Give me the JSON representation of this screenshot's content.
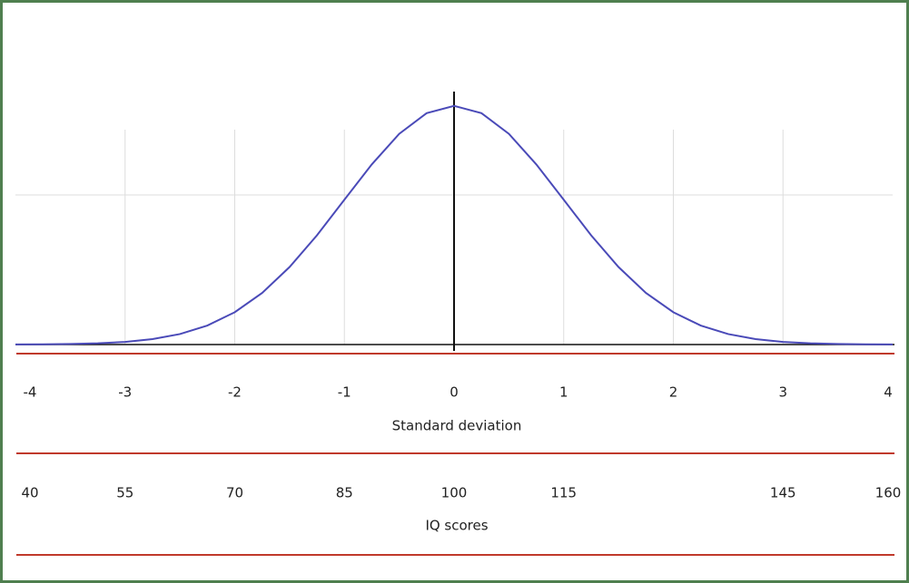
{
  "chart_data": {
    "type": "line",
    "x": [
      -4,
      -3.75,
      -3.5,
      -3.25,
      -3,
      -2.75,
      -2.5,
      -2.25,
      -2,
      -1.75,
      -1.5,
      -1.25,
      -1,
      -0.75,
      -0.5,
      -0.25,
      0,
      0.25,
      0.5,
      0.75,
      1,
      1.25,
      1.5,
      1.75,
      2,
      2.25,
      2.5,
      2.75,
      3,
      3.25,
      3.5,
      3.75,
      4
    ],
    "series": [
      {
        "color": "#4a4ab8",
        "values": [
          0.0001,
          0.0004,
          0.0009,
          0.002,
          0.0044,
          0.0091,
          0.0175,
          0.0317,
          0.054,
          0.0863,
          0.1295,
          0.1826,
          0.242,
          0.3011,
          0.3521,
          0.3867,
          0.3989,
          0.3867,
          0.3521,
          0.3011,
          0.242,
          0.1826,
          0.1295,
          0.0863,
          0.054,
          0.0317,
          0.0175,
          0.0091,
          0.0044,
          0.002,
          0.0009,
          0.0004,
          0.0001
        ]
      }
    ],
    "xlim": [
      -4,
      4
    ],
    "ylim": [
      0,
      0.4
    ],
    "xticks": [
      -4,
      -3,
      -2,
      -1,
      0,
      1,
      2,
      3,
      4
    ],
    "xlabel": "Standard deviation",
    "x2lim": [
      40,
      160
    ],
    "x2ticks": [
      40,
      55,
      70,
      85,
      100,
      115,
      145,
      160
    ],
    "x2label": "IQ scores",
    "hgrid": [
      0.25
    ],
    "grid": true
  }
}
